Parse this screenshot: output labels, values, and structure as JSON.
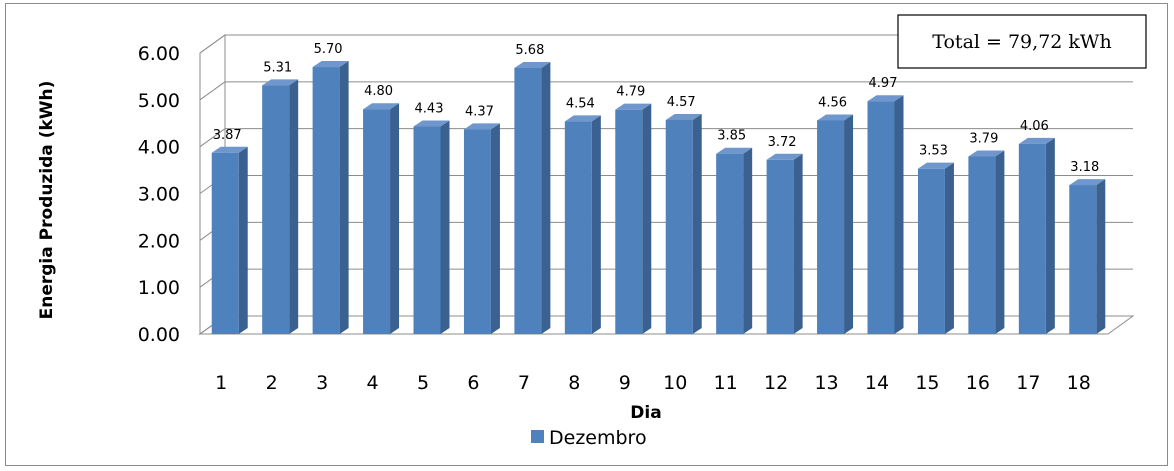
{
  "chart_data": {
    "type": "bar",
    "categories": [
      "1",
      "2",
      "3",
      "4",
      "5",
      "6",
      "7",
      "8",
      "9",
      "10",
      "11",
      "12",
      "13",
      "14",
      "15",
      "16",
      "17",
      "18"
    ],
    "series": [
      {
        "name": "Dezembro",
        "values": [
          3.87,
          5.31,
          5.7,
          4.8,
          4.43,
          4.37,
          5.68,
          4.54,
          4.79,
          4.57,
          3.85,
          3.72,
          4.56,
          4.97,
          3.53,
          3.79,
          4.06,
          3.18
        ],
        "color": "#4f81bd"
      }
    ],
    "data_labels": [
      "3.87",
      "5.31",
      "5.70",
      "4.80",
      "4.43",
      "4.37",
      "5.68",
      "4.54",
      "4.79",
      "4.57",
      "3.85",
      "3.72",
      "4.56",
      "4.97",
      "3.53",
      "3.79",
      "4.06",
      "3.18"
    ],
    "xlabel": "Dia",
    "ylabel": "Energia Produzida (kWh)",
    "ylim": [
      0,
      6
    ],
    "yticks": [
      "0.00",
      "1.00",
      "2.00",
      "3.00",
      "4.00",
      "5.00",
      "6.00"
    ],
    "annotation": "Total = 79,72 kWh",
    "grid": true,
    "legend_position": "bottom",
    "style": "3d-column"
  }
}
